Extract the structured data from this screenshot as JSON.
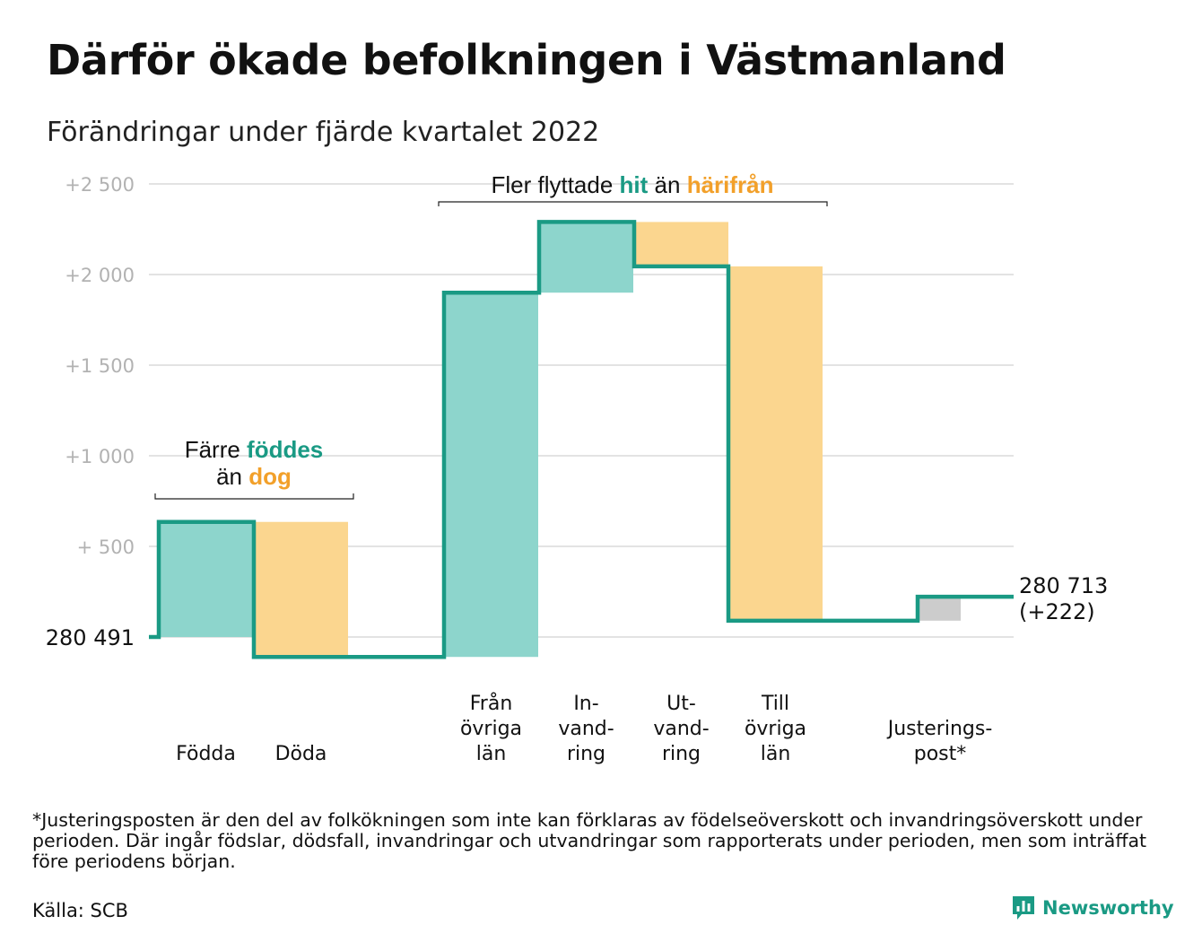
{
  "title": "Därför ökade befolkningen i Västmanland",
  "subtitle": "Förändringar under fjärde kvartalet 2022",
  "footnote": "*Justeringsposten är den del av folkökningen som inte kan förklaras av födelseöverskott och invandringsöverskott under perioden. Där ingår födslar, dödsfall, invandringar och utvandringar som rapporterats under perioden, men som inträffat före periodens början.",
  "source": "Källa: SCB",
  "brand": "Newsworthy",
  "colors": {
    "increase": "#8dd5cc",
    "decrease": "#fbd68f",
    "adjustment": "#cccccc",
    "line": "#1a9a84",
    "accent_orange": "#f2a02a",
    "grid": "#e3e3e3",
    "tick_text": "#b2b2b2"
  },
  "chart_data": {
    "type": "waterfall",
    "start_value": 280491,
    "start_label": "280 491",
    "end_label_value": "280 713",
    "end_label_change": "(+222)",
    "steps": [
      {
        "label_lines": [
          "Födda"
        ],
        "change": 635,
        "kind": "increase"
      },
      {
        "label_lines": [
          "Döda"
        ],
        "change": -745,
        "kind": "decrease"
      },
      {
        "label_lines": [
          "Från",
          "övriga",
          "län"
        ],
        "change": 2010,
        "kind": "increase"
      },
      {
        "label_lines": [
          "In-",
          "vand-",
          "ring"
        ],
        "change": 390,
        "kind": "increase"
      },
      {
        "label_lines": [
          "Ut-",
          "vand-",
          "ring"
        ],
        "change": -245,
        "kind": "decrease"
      },
      {
        "label_lines": [
          "Till",
          "övriga",
          "län"
        ],
        "change": -1955,
        "kind": "decrease"
      },
      {
        "label_lines": [
          "Justerings-",
          "post*"
        ],
        "change": 132,
        "kind": "adjustment"
      }
    ],
    "y_ticks": [
      {
        "value": 500,
        "label": "+ 500"
      },
      {
        "value": 1000,
        "label": "+1 000"
      },
      {
        "value": 1500,
        "label": "+1 500"
      },
      {
        "value": 2000,
        "label": "+2 000"
      },
      {
        "value": 2500,
        "label": "+2 500"
      }
    ],
    "ylim": [
      -150,
      2550
    ],
    "grid": true,
    "annotations": [
      {
        "parts": [
          {
            "text": "Färre ",
            "style": "plain"
          },
          {
            "text": "föddes",
            "style": "teal"
          },
          {
            "text": "än ",
            "style": "plain",
            "newline": true
          },
          {
            "text": "dog",
            "style": "orange"
          }
        ],
        "spans_steps": [
          0,
          1
        ]
      },
      {
        "parts": [
          {
            "text": "Fler flyttade ",
            "style": "plain"
          },
          {
            "text": "hit",
            "style": "teal"
          },
          {
            "text": " än ",
            "style": "plain"
          },
          {
            "text": "härifrån",
            "style": "orange"
          }
        ],
        "spans_steps": [
          2,
          5
        ]
      }
    ]
  }
}
